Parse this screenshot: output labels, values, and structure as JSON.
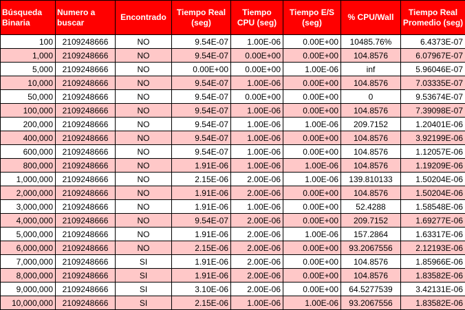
{
  "colors": {
    "header_bg": "#ff0000",
    "header_text": "#ffffff",
    "row_alt": "#ffc8c8",
    "row": "#ffffff",
    "grid": "#000000"
  },
  "headers": [
    "Búsqueda Binaria",
    "Numero a buscar",
    "Encontrado",
    "Tiempo Real (seg)",
    "Tiempo CPU (seg)",
    "Tiempo E/S (seg)",
    "% CPU/Wall",
    "Tiempo Real Promedio (seg)"
  ],
  "rows": [
    [
      "100",
      "2109248666",
      "NO",
      "9.54E-07",
      "1.00E-06",
      "0.00E+00",
      "10485.76%",
      "6.4373E-07"
    ],
    [
      "1,000",
      "2109248666",
      "NO",
      "9.54E-07",
      "0.00E+00",
      "0.00E+00",
      "104.8576",
      "6.07967E-07"
    ],
    [
      "5,000",
      "2109248666",
      "NO",
      "0.00E+00",
      "0.00E+00",
      "1.00E-06",
      "inf",
      "5.96046E-07"
    ],
    [
      "10,000",
      "2109248666",
      "NO",
      "9.54E-07",
      "1.00E-06",
      "0.00E+00",
      "104.8576",
      "7.03335E-07"
    ],
    [
      "50,000",
      "2109248666",
      "NO",
      "9.54E-07",
      "0.00E+00",
      "0.00E+00",
      "0",
      "9.53674E-07"
    ],
    [
      "100,000",
      "2109248666",
      "NO",
      "9.54E-07",
      "1.00E-06",
      "0.00E+00",
      "104.8576",
      "7.39098E-07"
    ],
    [
      "200,000",
      "2109248666",
      "NO",
      "9.54E-07",
      "1.00E-06",
      "1.00E-06",
      "209.7152",
      "1.20401E-06"
    ],
    [
      "400,000",
      "2109248666",
      "NO",
      "9.54E-07",
      "1.00E-06",
      "0.00E+00",
      "104.8576",
      "3.92199E-06"
    ],
    [
      "600,000",
      "2109248666",
      "NO",
      "9.54E-07",
      "1.00E-06",
      "0.00E+00",
      "104.8576",
      "1.12057E-06"
    ],
    [
      "800,000",
      "2109248666",
      "NO",
      "1.91E-06",
      "1.00E-06",
      "1.00E-06",
      "104.8576",
      "1.19209E-06"
    ],
    [
      "1,000,000",
      "2109248666",
      "NO",
      "2.15E-06",
      "2.00E-06",
      "1.00E-06",
      "139.810133",
      "1.50204E-06"
    ],
    [
      "2,000,000",
      "2109248666",
      "NO",
      "1.91E-06",
      "2.00E-06",
      "0.00E+00",
      "104.8576",
      "1.50204E-06"
    ],
    [
      "3,000,000",
      "2109248666",
      "NO",
      "1.91E-06",
      "1.00E-06",
      "0.00E+00",
      "52.4288",
      "1.58548E-06"
    ],
    [
      "4,000,000",
      "2109248666",
      "NO",
      "9.54E-07",
      "2.00E-06",
      "0.00E+00",
      "209.7152",
      "1.69277E-06"
    ],
    [
      "5,000,000",
      "2109248666",
      "NO",
      "1.91E-06",
      "2.00E-06",
      "1.00E-06",
      "157.2864",
      "1.63317E-06"
    ],
    [
      "6,000,000",
      "2109248666",
      "NO",
      "2.15E-06",
      "2.00E-06",
      "0.00E+00",
      "93.2067556",
      "2.12193E-06"
    ],
    [
      "7,000,000",
      "2109248666",
      "SI",
      "1.91E-06",
      "2.00E-06",
      "0.00E+00",
      "104.8576",
      "1.85966E-06"
    ],
    [
      "8,000,000",
      "2109248666",
      "SI",
      "1.91E-06",
      "2.00E-06",
      "0.00E+00",
      "104.8576",
      "1.83582E-06"
    ],
    [
      "9,000,000",
      "2109248666",
      "SI",
      "3.10E-06",
      "2.00E-06",
      "0.00E+00",
      "64.5277539",
      "3.42131E-06"
    ],
    [
      "10,000,000",
      "2109248666",
      "SI",
      "2.15E-06",
      "1.00E-06",
      "1.00E-06",
      "93.2067556",
      "1.83582E-06"
    ]
  ]
}
